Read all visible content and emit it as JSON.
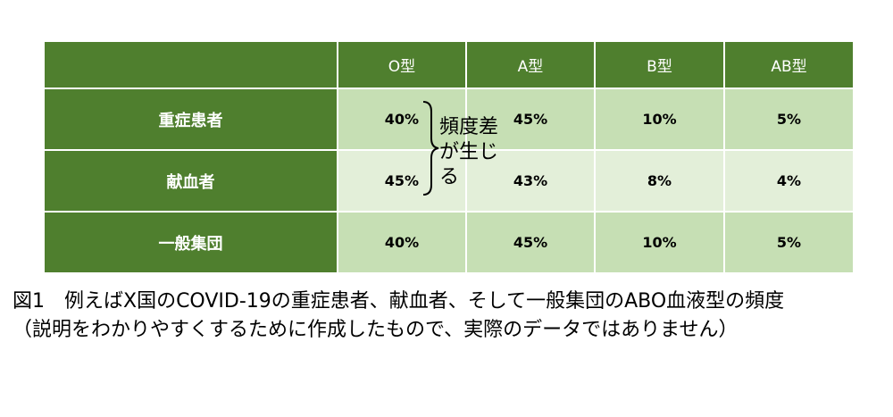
{
  "chart_data": {
    "type": "table",
    "columns": [
      "",
      "O型",
      "A型",
      "B型",
      "AB型"
    ],
    "rows": [
      {
        "label": "重症患者",
        "values": [
          "40%",
          "45%",
          "10%",
          "5%"
        ]
      },
      {
        "label": "献血者",
        "values": [
          "45%",
          "43%",
          "8%",
          "4%"
        ]
      },
      {
        "label": "一般集団",
        "values": [
          "40%",
          "45%",
          "10%",
          "5%"
        ]
      }
    ],
    "annotation": "頻度差が生じる"
  },
  "caption": {
    "line1": "図1　例えばX国のCOVID-19の重症患者、献血者、そして一般集団のABO血液型の頻度",
    "line2": "（説明をわかりやすくするために作成したもので、実際のデータではありません）"
  },
  "colors": {
    "header_green": "#4f7f2e",
    "cell_green": "#c6dfb4",
    "cell_light": "#e3efd9"
  }
}
